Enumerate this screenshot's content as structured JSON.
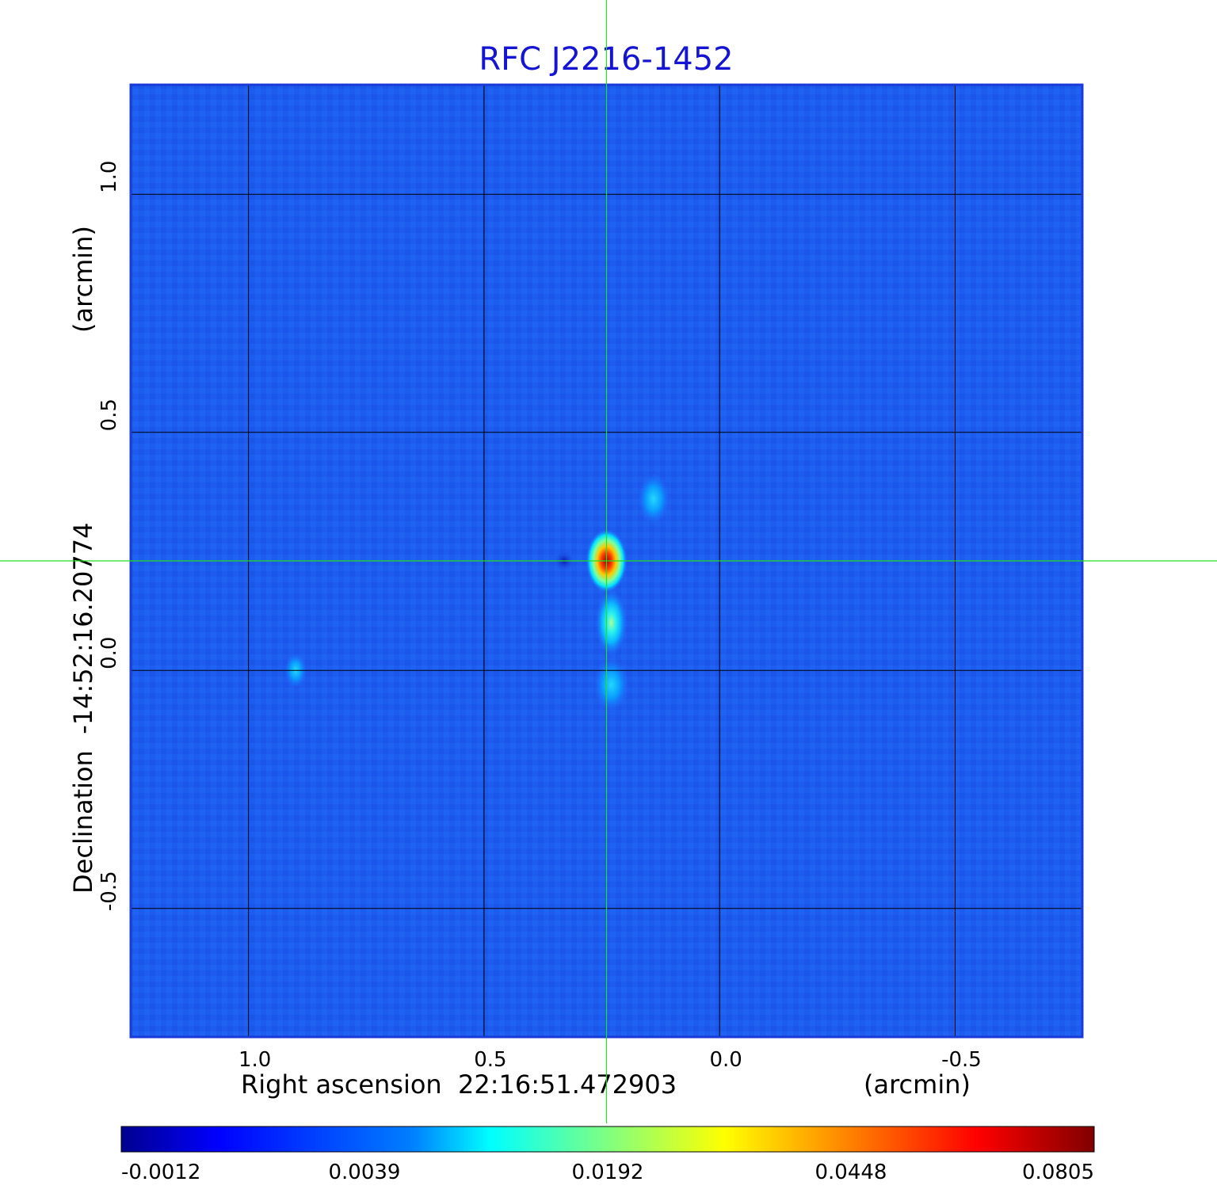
{
  "chart_data": {
    "type": "heatmap",
    "title": "RFC J2216-1452",
    "xlabel": "Right ascension  22:16:51.472903",
    "xunit": "(arcmin)",
    "ylabel": "Declination  -14:52:16.20774",
    "yunit": "(arcmin)",
    "xlim": [
      1.25,
      -0.77
    ],
    "ylim": [
      -0.77,
      1.23
    ],
    "x_reversed": true,
    "x_ticks": [
      {
        "value": 1.0,
        "label": "1.0"
      },
      {
        "value": 0.5,
        "label": "0.5"
      },
      {
        "value": 0.0,
        "label": "0.0"
      },
      {
        "value": -0.5,
        "label": "-0.5"
      }
    ],
    "y_ticks": [
      {
        "value": 1.0,
        "label": "1.0"
      },
      {
        "value": 0.5,
        "label": "0.5"
      },
      {
        "value": 0.0,
        "label": "0.0"
      },
      {
        "value": -0.5,
        "label": "-0.5"
      }
    ],
    "grid": true,
    "crosshair": {
      "x": 0.24,
      "y": 0.23
    },
    "colormap": "jet",
    "colorbar": {
      "position": "bottom",
      "tick_labels": [
        "-0.0012",
        "0.0039",
        "0.0192",
        "0.0448",
        "0.0805"
      ]
    },
    "features": [
      {
        "x": 0.24,
        "y": 0.23,
        "level": 0.0805
      },
      {
        "x": 0.23,
        "y": 0.1,
        "level": 0.012
      },
      {
        "x": 0.23,
        "y": -0.03,
        "level": 0.008
      },
      {
        "x": 0.14,
        "y": 0.36,
        "level": 0.007
      },
      {
        "x": 0.9,
        "y": 0.0,
        "level": 0.006
      }
    ],
    "colors": {
      "title": "#1414d2",
      "background_field": "#1e5cf0",
      "crosshair": "#22e022",
      "grid": "#000000",
      "frame": "#1a3ad8"
    }
  }
}
